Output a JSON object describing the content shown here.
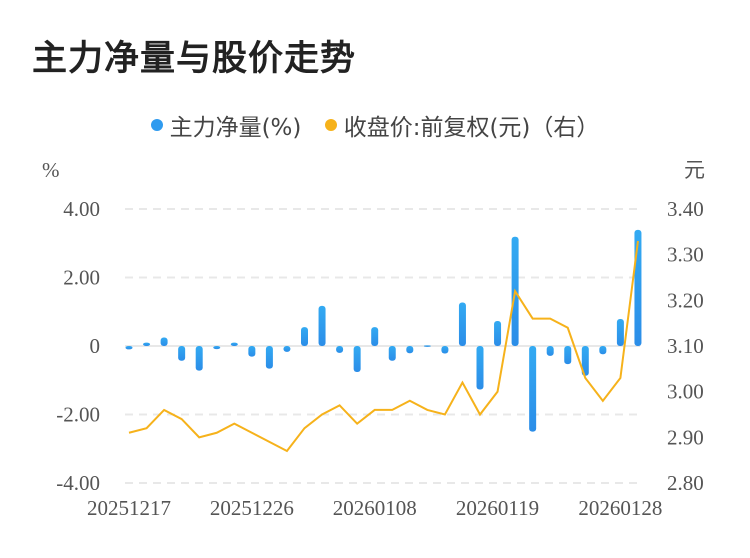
{
  "title": "主力净量与股价走势",
  "colors": {
    "bar": "#2f9bef",
    "line": "#f6b21b",
    "grid": "#e8e8e8"
  },
  "chart_data": {
    "type": "bar+line",
    "title": "主力净量与股价走势",
    "left_unit": "%",
    "right_unit": "元",
    "legend_position": "top",
    "grid": true,
    "x": [
      "20251217",
      "20251218",
      "20251219",
      "20251222",
      "20251223",
      "20251224",
      "20251225",
      "20251226",
      "20251229",
      "20251230",
      "20251231",
      "20260105",
      "20260106",
      "20260107",
      "20260108",
      "20260109",
      "20260112",
      "20260113",
      "20260114",
      "20260115",
      "20260116",
      "20260119",
      "20260120",
      "20260121",
      "20260122",
      "20260123",
      "20260126",
      "20260127",
      "20260128",
      "20260129"
    ],
    "x_tick_labels": [
      "20251217",
      "20251226",
      "20260108",
      "20260119",
      "20260128"
    ],
    "y_left": {
      "range": [
        -4,
        4
      ],
      "ticks": [
        "4.00",
        "2.00",
        "0",
        "-2.00",
        "-4.00"
      ],
      "tick_values": [
        4,
        2,
        0,
        -2,
        -4
      ]
    },
    "y_right": {
      "range": [
        2.8,
        3.4
      ],
      "ticks": [
        "3.40",
        "3.30",
        "3.20",
        "3.10",
        "3.00",
        "2.90",
        "2.80"
      ],
      "tick_values": [
        3.4,
        3.3,
        3.2,
        3.1,
        3.0,
        2.9,
        2.8
      ]
    },
    "series": [
      {
        "name": "主力净量(%)",
        "type": "bar",
        "axis": "left",
        "values": [
          -0.1,
          0.1,
          0.25,
          -0.43,
          -0.72,
          -0.09,
          0.1,
          -0.31,
          -0.66,
          -0.17,
          0.55,
          1.17,
          -0.2,
          -0.76,
          0.55,
          -0.43,
          -0.21,
          0.02,
          -0.22,
          1.27,
          -1.27,
          0.73,
          3.19,
          -2.5,
          -0.29,
          -0.53,
          -0.87,
          -0.24,
          0.79,
          3.39
        ]
      },
      {
        "name": "收盘价:前复权(元)（右）",
        "type": "line",
        "axis": "right",
        "values": [
          2.91,
          2.92,
          2.96,
          2.94,
          2.9,
          2.91,
          2.93,
          2.91,
          2.89,
          2.87,
          2.92,
          2.95,
          2.97,
          2.93,
          2.96,
          2.96,
          2.98,
          2.96,
          2.95,
          3.02,
          2.95,
          3.0,
          3.22,
          3.16,
          3.16,
          3.14,
          3.03,
          2.98,
          3.03,
          3.33
        ]
      }
    ]
  }
}
